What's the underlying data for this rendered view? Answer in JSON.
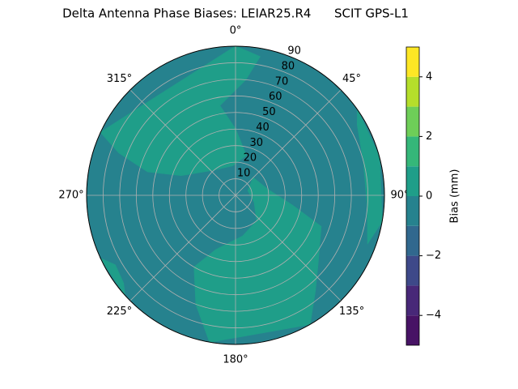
{
  "chart_data": {
    "type": "polar_contour",
    "title": "Delta Antenna Phase Biases: LEIAR25.R4      SCIT GPS-L1",
    "rlim": [
      0,
      90
    ],
    "rticks": [
      10,
      20,
      30,
      40,
      50,
      60,
      70,
      80,
      90
    ],
    "thetaticks": [
      {
        "value": 0,
        "label": "0°"
      },
      {
        "value": 45,
        "label": "45°"
      },
      {
        "value": 90,
        "label": "90°"
      },
      {
        "value": 135,
        "label": "135°"
      },
      {
        "value": 180,
        "label": "180°"
      },
      {
        "value": 225,
        "label": "225°"
      },
      {
        "value": 270,
        "label": "270°"
      },
      {
        "value": 315,
        "label": "315°"
      }
    ],
    "grid": true,
    "background_color": "#26828e",
    "regions": [
      {
        "color": "#1f9e89",
        "azimuth": [
          0,
          10,
          5,
          350,
          0,
          15,
          355,
          320,
          290,
          285,
          290,
          295
        ],
        "zenith": [
          90,
          85,
          70,
          55,
          40,
          25,
          18,
          20,
          35,
          55,
          75,
          90
        ]
      },
      {
        "color": "#1f9e89",
        "azimuth": [
          45,
          80,
          100,
          110,
          130,
          140,
          150,
          190,
          200,
          210,
          200,
          170,
          140,
          110,
          70
        ],
        "zenith": [
          15,
          20,
          35,
          55,
          65,
          75,
          90,
          90,
          70,
          50,
          35,
          25,
          20,
          12,
          8
        ]
      },
      {
        "color": "#1f9e89",
        "azimuth": [
          55,
          75,
          100,
          110,
          95,
          75,
          60
        ],
        "zenith": [
          90,
          90,
          90,
          85,
          80,
          80,
          85
        ]
      },
      {
        "color": "#1f9e89",
        "azimuth": [
          228,
          245,
          240,
          232
        ],
        "zenith": [
          90,
          90,
          84,
          86
        ]
      }
    ],
    "colorbar": {
      "label": "Bias (mm)",
      "levels": [
        -5,
        -4,
        -3,
        -2,
        -1,
        0,
        1,
        2,
        3,
        4,
        5
      ],
      "colors": [
        "#471365",
        "#482878",
        "#3e4989",
        "#31688e",
        "#26828e",
        "#1f9e89",
        "#35b779",
        "#6ece58",
        "#b5de2b",
        "#fde725"
      ],
      "ticks": [
        {
          "value": -4,
          "label": "−4"
        },
        {
          "value": -2,
          "label": "−2"
        },
        0,
        2,
        4
      ]
    }
  }
}
